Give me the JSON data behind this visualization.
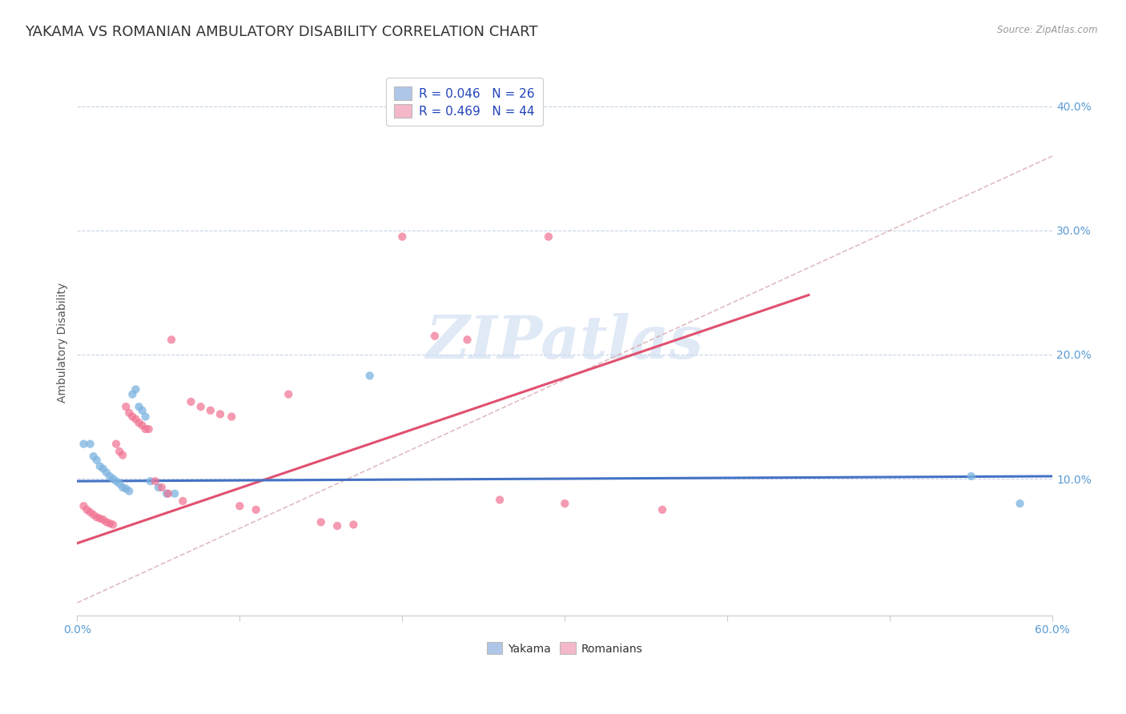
{
  "title": "YAKAMA VS ROMANIAN AMBULATORY DISABILITY CORRELATION CHART",
  "source": "Source: ZipAtlas.com",
  "ylabel": "Ambulatory Disability",
  "ytick_values": [
    0.1,
    0.2,
    0.3,
    0.4
  ],
  "xlim": [
    0,
    0.6
  ],
  "ylim": [
    -0.01,
    0.43
  ],
  "legend1_label": "R = 0.046   N = 26",
  "legend2_label": "R = 0.469   N = 44",
  "legend_color1": "#aec6e8",
  "legend_color2": "#f4b8c8",
  "dot_color_yakama": "#7bb3e0",
  "dot_color_romanian": "#f07090",
  "trendline_color_yakama": "#4472c4",
  "trendline_color_romanian": "#e05070",
  "grid_color": "#c8d4e8",
  "watermark": "ZIPatlas",
  "trendline_yakama": [
    0.0,
    0.6,
    0.098,
    0.102
  ],
  "trendline_romanian": [
    0.0,
    0.45,
    0.048,
    0.248
  ],
  "dashed_line": [
    0.0,
    0.6,
    0.0,
    0.36
  ],
  "yakama_points": [
    [
      0.004,
      0.128
    ],
    [
      0.008,
      0.128
    ],
    [
      0.01,
      0.118
    ],
    [
      0.012,
      0.115
    ],
    [
      0.014,
      0.11
    ],
    [
      0.016,
      0.108
    ],
    [
      0.018,
      0.105
    ],
    [
      0.02,
      0.102
    ],
    [
      0.022,
      0.1
    ],
    [
      0.024,
      0.098
    ],
    [
      0.026,
      0.096
    ],
    [
      0.028,
      0.093
    ],
    [
      0.03,
      0.092
    ],
    [
      0.032,
      0.09
    ],
    [
      0.034,
      0.168
    ],
    [
      0.036,
      0.172
    ],
    [
      0.038,
      0.158
    ],
    [
      0.04,
      0.155
    ],
    [
      0.042,
      0.15
    ],
    [
      0.045,
      0.098
    ],
    [
      0.05,
      0.093
    ],
    [
      0.055,
      0.088
    ],
    [
      0.18,
      0.183
    ],
    [
      0.06,
      0.088
    ],
    [
      0.55,
      0.102
    ],
    [
      0.58,
      0.08
    ]
  ],
  "romanian_points": [
    [
      0.004,
      0.078
    ],
    [
      0.006,
      0.075
    ],
    [
      0.008,
      0.073
    ],
    [
      0.01,
      0.071
    ],
    [
      0.012,
      0.069
    ],
    [
      0.014,
      0.068
    ],
    [
      0.016,
      0.067
    ],
    [
      0.018,
      0.065
    ],
    [
      0.02,
      0.064
    ],
    [
      0.022,
      0.063
    ],
    [
      0.024,
      0.128
    ],
    [
      0.026,
      0.122
    ],
    [
      0.028,
      0.119
    ],
    [
      0.03,
      0.158
    ],
    [
      0.032,
      0.153
    ],
    [
      0.034,
      0.15
    ],
    [
      0.036,
      0.148
    ],
    [
      0.038,
      0.145
    ],
    [
      0.04,
      0.143
    ],
    [
      0.042,
      0.14
    ],
    [
      0.044,
      0.14
    ],
    [
      0.048,
      0.098
    ],
    [
      0.052,
      0.093
    ],
    [
      0.056,
      0.088
    ],
    [
      0.058,
      0.212
    ],
    [
      0.065,
      0.082
    ],
    [
      0.07,
      0.162
    ],
    [
      0.076,
      0.158
    ],
    [
      0.082,
      0.155
    ],
    [
      0.088,
      0.152
    ],
    [
      0.095,
      0.15
    ],
    [
      0.1,
      0.078
    ],
    [
      0.11,
      0.075
    ],
    [
      0.13,
      0.168
    ],
    [
      0.15,
      0.065
    ],
    [
      0.17,
      0.063
    ],
    [
      0.2,
      0.295
    ],
    [
      0.22,
      0.215
    ],
    [
      0.24,
      0.212
    ],
    [
      0.26,
      0.083
    ],
    [
      0.3,
      0.08
    ],
    [
      0.36,
      0.075
    ],
    [
      0.16,
      0.062
    ],
    [
      0.29,
      0.295
    ]
  ],
  "background_color": "#ffffff",
  "title_fontsize": 13,
  "axis_label_fontsize": 10,
  "legend_fontsize": 11,
  "tick_color": "#5b9bd5"
}
